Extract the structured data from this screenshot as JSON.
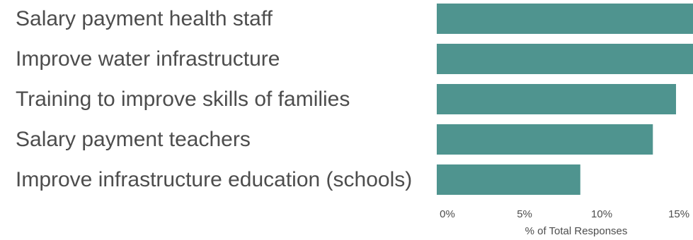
{
  "chart_data": {
    "type": "bar",
    "orientation": "horizontal",
    "categories": [
      "Salary payment health staff",
      "Improve water infrastructure",
      "Training to improve skills of families",
      "Salary payment teachers",
      "Improve infrastructure education (schools)"
    ],
    "values": [
      16.8,
      16.6,
      15.5,
      14.0,
      9.3
    ],
    "xlabel": "% of Total Responses",
    "x_ticks": [
      "0%",
      "5%",
      "10%",
      "15%"
    ],
    "x_tick_values": [
      0,
      5,
      10,
      15
    ],
    "xlim": [
      0,
      16.6
    ],
    "grid": false,
    "colors": {
      "bar": "#4f948f",
      "text": "#4d4d4d"
    }
  }
}
